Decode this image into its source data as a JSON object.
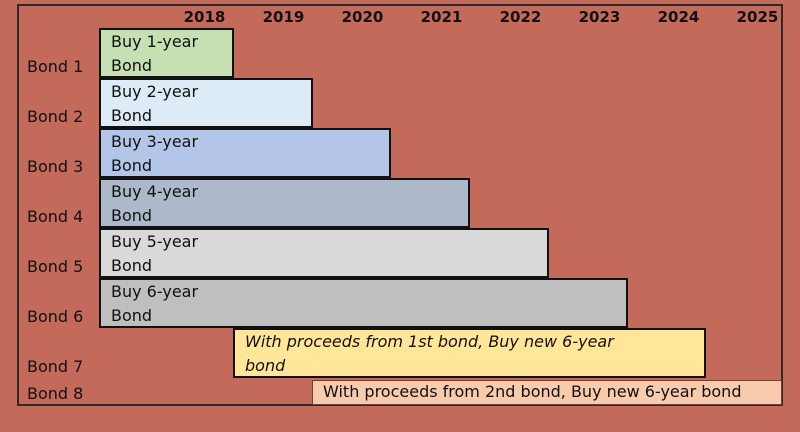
{
  "years": [
    "2018",
    "2019",
    "2020",
    "2021",
    "2022",
    "2023",
    "2024",
    "2025"
  ],
  "rows": [
    "Bond 1",
    "Bond 2",
    "Bond 3",
    "Bond 4",
    "Bond 5",
    "Bond 6",
    "Bond 7",
    "Bond 8"
  ],
  "bars": [
    {
      "line1": "Buy 1-year",
      "line2": "Bond",
      "color": "#c6e0b4"
    },
    {
      "line1": "Buy 2-year",
      "line2": "Bond",
      "color": "#ddebf7"
    },
    {
      "line1": "Buy 3-year",
      "line2": "Bond",
      "color": "#b4c6e7"
    },
    {
      "line1": "Buy 4-year",
      "line2": "Bond",
      "color": "#adb9ca"
    },
    {
      "line1": "Buy 5-year",
      "line2": "Bond",
      "color": "#d9d9d9"
    },
    {
      "line1": "Buy 6-year",
      "line2": "Bond",
      "color": "#bfbfbf"
    },
    {
      "line1": "With proceeds from 1st bond, Buy new 6-year",
      "line2": "bond",
      "color": "#ffe699"
    },
    {
      "line1": "With proceeds from 2nd bond, Buy new 6-year bond",
      "line2": "",
      "color": "#f8cbad"
    }
  ]
}
